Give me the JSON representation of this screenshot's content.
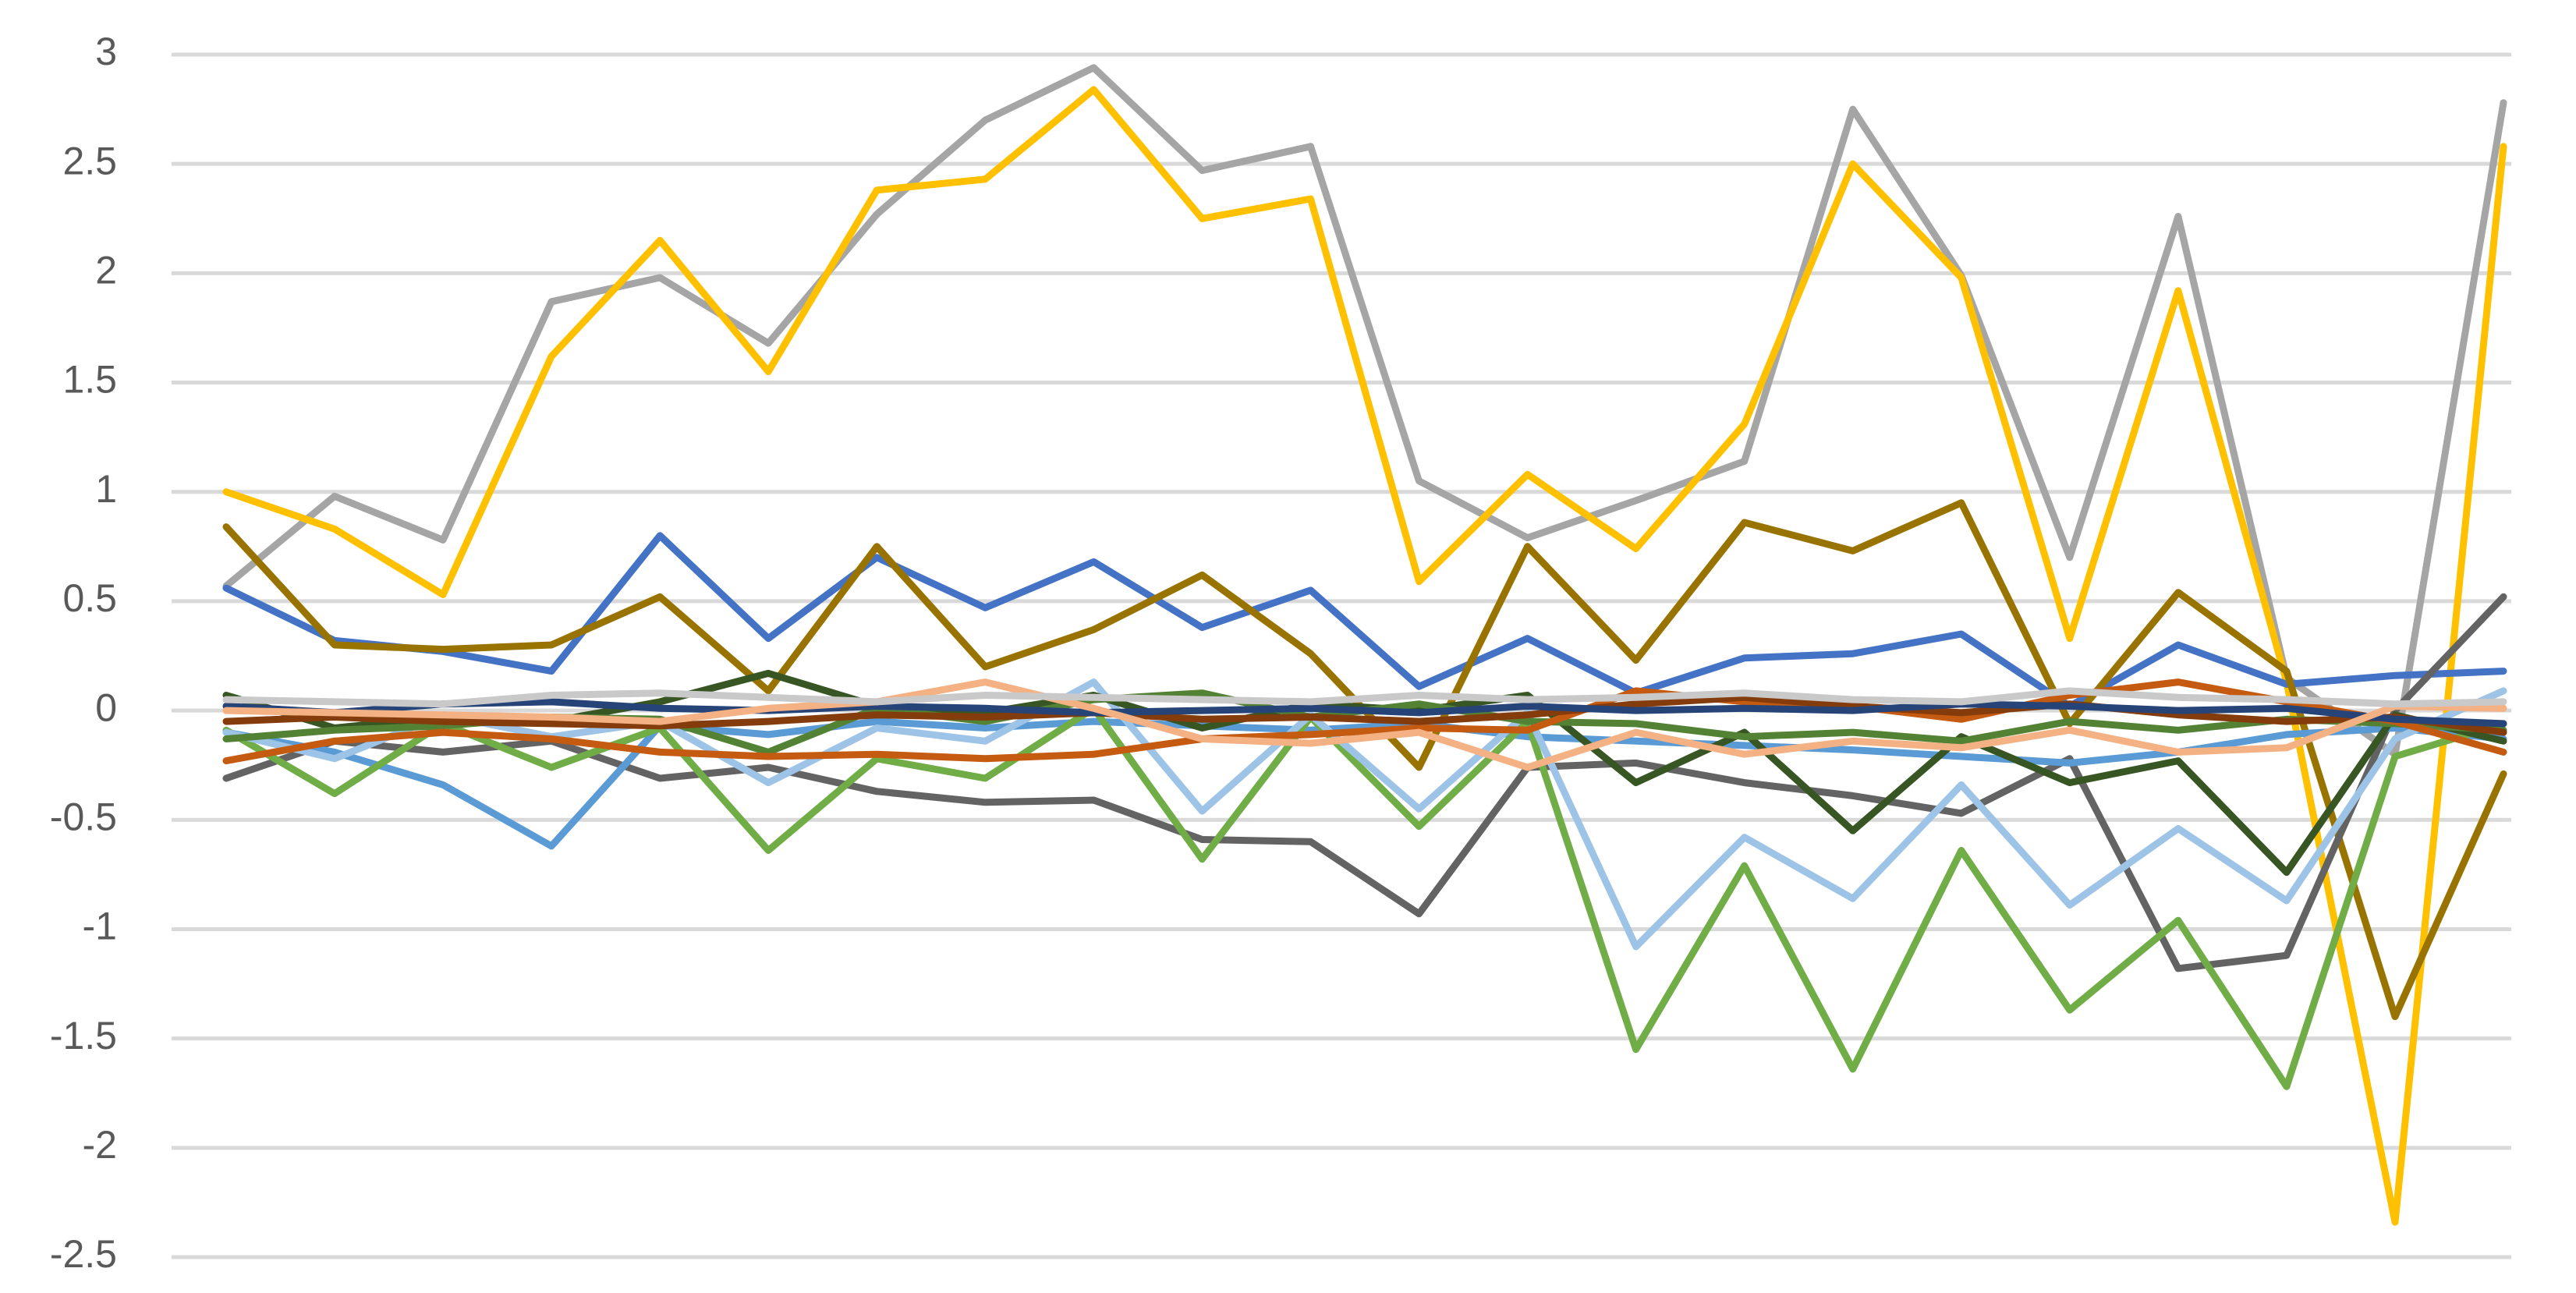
{
  "chart_data": {
    "type": "line",
    "title": "",
    "xlabel": "",
    "ylabel": "",
    "ylim": [
      -2.5,
      3
    ],
    "yticks": [
      3,
      2.5,
      2,
      1.5,
      1,
      0.5,
      0,
      -0.5,
      -1,
      -1.5,
      -2,
      -2.5
    ],
    "ytick_labels": [
      "3",
      "2.5",
      "2",
      "1.5",
      "1",
      "0.5",
      "0",
      "-0.5",
      "-1",
      "-1.5",
      "-2",
      "-2.5"
    ],
    "x": [
      1,
      2,
      3,
      4,
      5,
      6,
      7,
      8,
      9,
      10,
      11,
      12,
      13,
      14,
      15,
      16,
      17,
      18,
      19,
      20,
      21,
      22
    ],
    "grid": true,
    "legend": "none",
    "series": [
      {
        "color": "#a5a5a5",
        "values": [
          0.57,
          0.98,
          0.78,
          1.87,
          1.98,
          1.68,
          2.27,
          2.7,
          2.94,
          2.47,
          2.58,
          1.05,
          0.79,
          0.96,
          1.14,
          2.75,
          1.99,
          0.7,
          2.26,
          0.15,
          -0.2,
          2.78
        ]
      },
      {
        "color": "#ffc000",
        "values": [
          1.0,
          0.83,
          0.53,
          1.62,
          2.15,
          1.55,
          2.38,
          2.43,
          2.84,
          2.25,
          2.34,
          0.59,
          1.08,
          0.74,
          1.31,
          2.5,
          1.98,
          0.33,
          1.92,
          0.13,
          -2.34,
          2.58
        ]
      },
      {
        "color": "#4472c4",
        "values": [
          0.56,
          0.32,
          0.27,
          0.18,
          0.8,
          0.33,
          0.7,
          0.47,
          0.68,
          0.38,
          0.55,
          0.11,
          0.33,
          0.08,
          0.24,
          0.26,
          0.35,
          0.02,
          0.3,
          0.12,
          0.16,
          0.18
        ]
      },
      {
        "color": "#997300",
        "values": [
          0.84,
          0.3,
          0.28,
          0.3,
          0.52,
          0.09,
          0.75,
          0.2,
          0.37,
          0.62,
          0.26,
          -0.26,
          0.75,
          0.23,
          0.86,
          0.73,
          0.95,
          -0.06,
          0.54,
          0.18,
          -1.4,
          -0.29
        ]
      },
      {
        "color": "#636363",
        "values": [
          -0.31,
          -0.14,
          -0.19,
          -0.14,
          -0.31,
          -0.26,
          -0.37,
          -0.42,
          -0.41,
          -0.59,
          -0.6,
          -0.93,
          -0.26,
          -0.24,
          -0.33,
          -0.39,
          -0.47,
          -0.22,
          -1.18,
          -1.12,
          0.0,
          0.52
        ]
      },
      {
        "color": "#5b9bd5",
        "values": [
          -0.1,
          -0.19,
          -0.34,
          -0.62,
          -0.07,
          -0.11,
          -0.05,
          -0.08,
          -0.05,
          -0.07,
          -0.09,
          -0.06,
          -0.12,
          -0.14,
          -0.16,
          -0.18,
          -0.21,
          -0.24,
          -0.19,
          -0.11,
          -0.08,
          -0.13
        ]
      },
      {
        "color": "#70ad47",
        "values": [
          -0.09,
          -0.38,
          -0.06,
          -0.26,
          -0.08,
          -0.64,
          -0.22,
          -0.31,
          0.01,
          -0.68,
          -0.03,
          -0.53,
          -0.05,
          -1.55,
          -0.71,
          -1.64,
          -0.64,
          -1.37,
          -0.96,
          -1.72,
          -0.21,
          -0.06
        ]
      },
      {
        "color": "#9dc3e6",
        "values": [
          -0.1,
          -0.22,
          -0.02,
          -0.12,
          -0.05,
          -0.33,
          -0.08,
          -0.14,
          0.13,
          -0.46,
          -0.02,
          -0.45,
          -0.01,
          -1.08,
          -0.58,
          -0.86,
          -0.34,
          -0.89,
          -0.54,
          -0.87,
          -0.13,
          0.09
        ]
      },
      {
        "color": "#375623",
        "values": [
          0.07,
          -0.08,
          -0.03,
          -0.05,
          0.04,
          0.17,
          0.02,
          -0.01,
          0.07,
          -0.08,
          0.03,
          0.0,
          0.07,
          -0.33,
          -0.1,
          -0.55,
          -0.12,
          -0.33,
          -0.23,
          -0.74,
          -0.02,
          -0.14
        ]
      },
      {
        "color": "#548235",
        "values": [
          -0.13,
          -0.09,
          -0.07,
          -0.03,
          -0.04,
          -0.19,
          0.01,
          -0.05,
          0.05,
          0.08,
          -0.03,
          0.03,
          -0.05,
          -0.06,
          -0.12,
          -0.1,
          -0.14,
          -0.05,
          -0.09,
          -0.04,
          -0.06,
          -0.09
        ]
      },
      {
        "color": "#c55a11",
        "values": [
          -0.23,
          -0.14,
          -0.1,
          -0.13,
          -0.19,
          -0.21,
          -0.2,
          -0.22,
          -0.2,
          -0.13,
          -0.11,
          -0.08,
          -0.09,
          0.09,
          0.04,
          0.02,
          -0.04,
          0.07,
          0.13,
          0.04,
          -0.05,
          -0.19
        ]
      },
      {
        "color": "#843c0c",
        "values": [
          -0.05,
          -0.03,
          -0.05,
          -0.06,
          -0.07,
          -0.05,
          -0.02,
          -0.03,
          -0.01,
          -0.04,
          -0.03,
          -0.05,
          -0.02,
          0.03,
          0.06,
          0.02,
          -0.01,
          0.03,
          -0.02,
          -0.05,
          -0.03,
          -0.1
        ]
      },
      {
        "color": "#264478",
        "values": [
          0.02,
          -0.01,
          0.03,
          0.04,
          0.01,
          0.0,
          0.02,
          0.01,
          -0.01,
          0.0,
          0.01,
          -0.01,
          0.02,
          0.0,
          0.01,
          0.0,
          0.03,
          0.02,
          0.0,
          0.01,
          -0.04,
          -0.06
        ]
      },
      {
        "color": "#f4b183",
        "values": [
          0.0,
          -0.01,
          -0.02,
          -0.03,
          -0.05,
          0.01,
          0.04,
          0.13,
          0.01,
          -0.13,
          -0.15,
          -0.1,
          -0.26,
          -0.1,
          -0.2,
          -0.14,
          -0.17,
          -0.09,
          -0.19,
          -0.17,
          0.02,
          0.01
        ]
      },
      {
        "color": "#c9c9c9",
        "values": [
          0.05,
          0.04,
          0.03,
          0.07,
          0.08,
          0.06,
          0.04,
          0.07,
          0.06,
          0.05,
          0.04,
          0.07,
          0.05,
          0.06,
          0.08,
          0.05,
          0.04,
          0.09,
          0.06,
          0.05,
          0.03,
          0.04
        ]
      }
    ]
  }
}
